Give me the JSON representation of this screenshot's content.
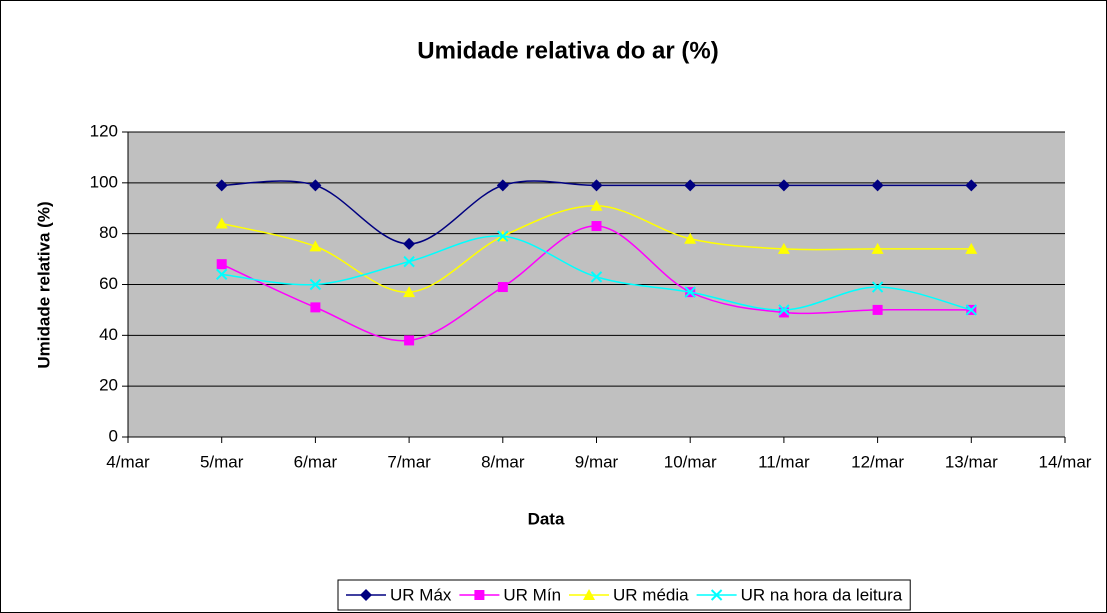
{
  "chart_data": {
    "type": "line",
    "title": "Umidade relativa do ar (%)",
    "x_label": "Data",
    "y_label": "Umidade relativa (%)",
    "categories": [
      "4/mar",
      "5/mar",
      "6/mar",
      "7/mar",
      "8/mar",
      "9/mar",
      "10/mar",
      "11/mar",
      "12/mar",
      "13/mar",
      "14/mar"
    ],
    "series": [
      {
        "name": "UR Máx",
        "color": "#000080",
        "marker": "diamond",
        "values": [
          null,
          99,
          99,
          76,
          99,
          99,
          99,
          99,
          99,
          99,
          null
        ]
      },
      {
        "name": "UR Mín",
        "color": "#ff00ff",
        "marker": "square",
        "values": [
          null,
          68,
          51,
          38,
          59,
          83,
          57,
          49,
          50,
          50,
          null
        ]
      },
      {
        "name": "UR média",
        "color": "#ffff00",
        "marker": "triangle",
        "values": [
          null,
          84,
          75,
          57,
          79,
          91,
          78,
          74,
          74,
          74,
          null
        ]
      },
      {
        "name": "UR na hora da leitura",
        "color": "#00ffff",
        "marker": "x",
        "values": [
          null,
          64,
          60,
          69,
          79,
          63,
          57,
          50,
          59,
          50,
          null
        ]
      }
    ],
    "ylim": [
      0,
      120
    ],
    "yticks": [
      0,
      20,
      40,
      60,
      80,
      100,
      120
    ],
    "grid": true,
    "smooth": true,
    "legend": "bottom"
  }
}
